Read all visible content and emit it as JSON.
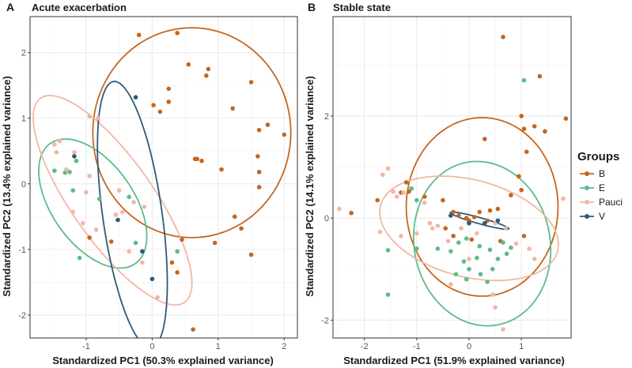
{
  "colors": {
    "B": "#c8651b",
    "E": "#5dbb8c",
    "Pauci": "#f2b7a3",
    "V": "#2e5a78",
    "grid": "#ebebeb",
    "axis_line": "#333333",
    "text": "#1a1a1a",
    "tick": "#555555"
  },
  "legend": {
    "title": "Groups",
    "items": [
      "B",
      "E",
      "Pauci",
      "V"
    ]
  },
  "chart_data": [
    {
      "panel": "A",
      "type": "scatter",
      "title": "Acute exacerbation",
      "xlabel": "Standardized PC1 (50.3% explained variance)",
      "ylabel": "Standardized PC2 (13.4% explained variance)",
      "xlim": [
        -1.85,
        2.2
      ],
      "ylim": [
        -2.35,
        2.55
      ],
      "xticks": [
        -1,
        0,
        1,
        2
      ],
      "yticks": [
        -2,
        -1,
        0,
        1,
        2
      ],
      "tick_labels_x": [
        "-1",
        "0",
        "1",
        "2"
      ],
      "tick_labels_y": [
        "-2",
        "-1",
        "0",
        "1",
        "2"
      ],
      "series": [
        {
          "name": "B",
          "points": [
            [
              -0.2,
              2.27
            ],
            [
              0.38,
              2.3
            ],
            [
              0.55,
              1.82
            ],
            [
              0.85,
              1.75
            ],
            [
              0.25,
              1.45
            ],
            [
              0.25,
              1.25
            ],
            [
              0.02,
              1.2
            ],
            [
              0.12,
              1.1
            ],
            [
              0.82,
              1.65
            ],
            [
              1.22,
              1.15
            ],
            [
              1.5,
              1.55
            ],
            [
              1.75,
              0.9
            ],
            [
              1.62,
              0.82
            ],
            [
              2.0,
              0.75
            ],
            [
              0.65,
              0.38
            ],
            [
              0.68,
              0.38
            ],
            [
              0.75,
              0.35
            ],
            [
              1.6,
              0.42
            ],
            [
              1.62,
              0.18
            ],
            [
              1.05,
              0.22
            ],
            [
              1.62,
              -0.05
            ],
            [
              1.25,
              -0.5
            ],
            [
              1.35,
              -0.68
            ],
            [
              1.5,
              -1.08
            ],
            [
              0.95,
              -0.9
            ],
            [
              0.45,
              -0.85
            ],
            [
              0.3,
              -1.2
            ],
            [
              0.38,
              -1.35
            ],
            [
              0.62,
              -2.22
            ],
            [
              -0.62,
              -0.88
            ],
            [
              -0.95,
              -0.82
            ]
          ]
        },
        {
          "name": "E",
          "points": [
            [
              -1.48,
              0.2
            ],
            [
              -1.32,
              0.17
            ],
            [
              -1.25,
              0.18
            ],
            [
              -1.15,
              0.35
            ],
            [
              -1.2,
              -0.1
            ],
            [
              -1.1,
              -1.13
            ],
            [
              -0.8,
              -0.23
            ],
            [
              -0.25,
              -0.9
            ],
            [
              -0.35,
              -0.2
            ],
            [
              0.38,
              -1.03
            ]
          ]
        },
        {
          "name": "Pauci",
          "points": [
            [
              -1.48,
              0.6
            ],
            [
              -1.4,
              0.65
            ],
            [
              -1.18,
              0.48
            ],
            [
              -0.95,
              1.03
            ],
            [
              -0.82,
              1.0
            ],
            [
              -1.3,
              0.22
            ],
            [
              -1.45,
              0.48
            ],
            [
              -0.95,
              0.12
            ],
            [
              -1.0,
              -0.13
            ],
            [
              -1.2,
              -0.43
            ],
            [
              -1.05,
              -0.6
            ],
            [
              -0.85,
              -0.7
            ],
            [
              -0.55,
              -0.47
            ],
            [
              -0.45,
              -0.43
            ],
            [
              -0.5,
              -0.1
            ],
            [
              -0.28,
              -0.28
            ],
            [
              -0.15,
              -1.2
            ],
            [
              0.08,
              -1.73
            ],
            [
              -0.35,
              -1.03
            ],
            [
              -0.12,
              -0.35
            ]
          ]
        },
        {
          "name": "V",
          "points": [
            [
              -1.18,
              0.42
            ],
            [
              -0.25,
              1.32
            ],
            [
              -0.52,
              -0.55
            ],
            [
              -0.15,
              -1.03
            ],
            [
              0.0,
              -1.45
            ]
          ]
        }
      ],
      "ellipses": [
        {
          "group": "B",
          "center": [
            0.6,
            0.78
          ],
          "rx": 1.5,
          "ry": 1.6,
          "angle": 0
        },
        {
          "group": "E",
          "center": [
            -0.9,
            -0.3
          ],
          "rx": 0.62,
          "ry": 1.12,
          "angle": 35
        },
        {
          "group": "Pauci",
          "center": [
            -0.6,
            -0.25
          ],
          "rx": 0.62,
          "ry": 1.9,
          "angle": 35
        },
        {
          "group": "V",
          "center": [
            -0.3,
            -0.47
          ],
          "rx": 0.45,
          "ry": 2.05,
          "angle": 8
        }
      ]
    },
    {
      "panel": "B",
      "type": "scatter",
      "title": "Stable state",
      "xlabel": "Standardized PC1 (51.9% explained variance)",
      "ylabel": "Standardized PC2 (14.1% explained variance)",
      "xlim": [
        -2.6,
        1.95
      ],
      "ylim": [
        -2.35,
        3.95
      ],
      "xticks": [
        -2,
        -1,
        0,
        1
      ],
      "yticks": [
        -2,
        0,
        2
      ],
      "tick_labels_x": [
        "-2",
        "-1",
        "0",
        "1"
      ],
      "tick_labels_y": [
        "-2",
        "0",
        "2"
      ],
      "series": [
        {
          "name": "B",
          "points": [
            [
              0.65,
              3.55
            ],
            [
              1.35,
              2.78
            ],
            [
              1.0,
              2.0
            ],
            [
              1.25,
              1.8
            ],
            [
              1.05,
              1.75
            ],
            [
              1.45,
              1.7
            ],
            [
              1.85,
              1.95
            ],
            [
              0.3,
              1.55
            ],
            [
              1.1,
              1.3
            ],
            [
              0.95,
              0.82
            ],
            [
              1.0,
              0.55
            ],
            [
              0.8,
              0.45
            ],
            [
              0.55,
              0.18
            ],
            [
              -1.2,
              0.7
            ],
            [
              -1.3,
              0.5
            ],
            [
              -1.15,
              0.52
            ],
            [
              -0.85,
              0.42
            ],
            [
              -0.5,
              0.35
            ],
            [
              -0.3,
              0.12
            ],
            [
              -0.2,
              0.05
            ],
            [
              -0.05,
              0.0
            ],
            [
              0.0,
              -0.05
            ],
            [
              0.1,
              0.02
            ],
            [
              0.2,
              0.12
            ],
            [
              0.35,
              -0.05
            ],
            [
              0.4,
              0.15
            ],
            [
              -0.45,
              -0.2
            ],
            [
              0.05,
              -0.42
            ],
            [
              -0.3,
              -0.35
            ],
            [
              -1.75,
              0.35
            ],
            [
              -2.25,
              0.1
            ],
            [
              0.6,
              -0.45
            ],
            [
              1.05,
              -0.35
            ]
          ]
        },
        {
          "name": "E",
          "points": [
            [
              1.05,
              2.7
            ],
            [
              -1.1,
              0.58
            ],
            [
              -1.0,
              0.35
            ],
            [
              -1.55,
              -0.63
            ],
            [
              -1.0,
              -0.6
            ],
            [
              -0.6,
              -0.6
            ],
            [
              -0.35,
              -0.65
            ],
            [
              -0.2,
              -0.48
            ],
            [
              -0.05,
              -0.4
            ],
            [
              0.2,
              -0.55
            ],
            [
              0.4,
              -0.62
            ],
            [
              0.65,
              -0.48
            ],
            [
              0.8,
              -0.58
            ],
            [
              -0.1,
              -0.85
            ],
            [
              0.15,
              -0.78
            ],
            [
              0.55,
              -0.8
            ],
            [
              0.72,
              -0.7
            ],
            [
              0.0,
              -1.0
            ],
            [
              0.22,
              -1.1
            ],
            [
              0.45,
              -1.0
            ],
            [
              -0.25,
              -1.1
            ],
            [
              -0.05,
              -1.2
            ],
            [
              0.35,
              -1.25
            ],
            [
              -1.55,
              -1.5
            ]
          ]
        },
        {
          "name": "Pauci",
          "points": [
            [
              -1.55,
              0.97
            ],
            [
              -1.65,
              0.85
            ],
            [
              -1.45,
              0.52
            ],
            [
              -1.38,
              0.42
            ],
            [
              -1.25,
              0.5
            ],
            [
              -0.85,
              0.3
            ],
            [
              -0.75,
              -0.1
            ],
            [
              -0.6,
              -0.15
            ],
            [
              -1.0,
              -0.3
            ],
            [
              -1.3,
              -0.35
            ],
            [
              -1.7,
              -0.27
            ],
            [
              -2.48,
              0.18
            ],
            [
              -0.35,
              0.05
            ],
            [
              -0.7,
              -0.2
            ],
            [
              -0.4,
              -0.45
            ],
            [
              -0.15,
              -0.2
            ],
            [
              0.15,
              -0.3
            ],
            [
              0.5,
              -0.1
            ],
            [
              0.7,
              -0.2
            ],
            [
              0.9,
              -0.5
            ],
            [
              1.15,
              -0.6
            ],
            [
              1.25,
              -0.8
            ],
            [
              1.8,
              0.38
            ],
            [
              0.45,
              -1.5
            ],
            [
              0.5,
              -1.75
            ],
            [
              0.65,
              -2.18
            ],
            [
              -0.35,
              -1.3
            ],
            [
              0.0,
              -0.8
            ]
          ]
        },
        {
          "name": "V",
          "points": [
            [
              -0.35,
              0.05
            ],
            [
              0.0,
              -0.1
            ],
            [
              0.3,
              -0.1
            ],
            [
              0.55,
              -0.05
            ]
          ]
        }
      ],
      "ellipses": [
        {
          "group": "B",
          "center": [
            0.25,
            0.22
          ],
          "rx": 1.45,
          "ry": 1.75,
          "angle": 0
        },
        {
          "group": "E",
          "center": [
            0.25,
            -0.5
          ],
          "rx": 1.3,
          "ry": 1.62,
          "angle": 10
        },
        {
          "group": "Pauci",
          "center": [
            0.0,
            -0.2
          ],
          "rx": 1.75,
          "ry": 0.95,
          "angle": -15
        },
        {
          "group": "V",
          "center": [
            0.2,
            -0.05
          ],
          "rx": 0.58,
          "ry": 0.06,
          "angle": -16
        }
      ]
    }
  ]
}
